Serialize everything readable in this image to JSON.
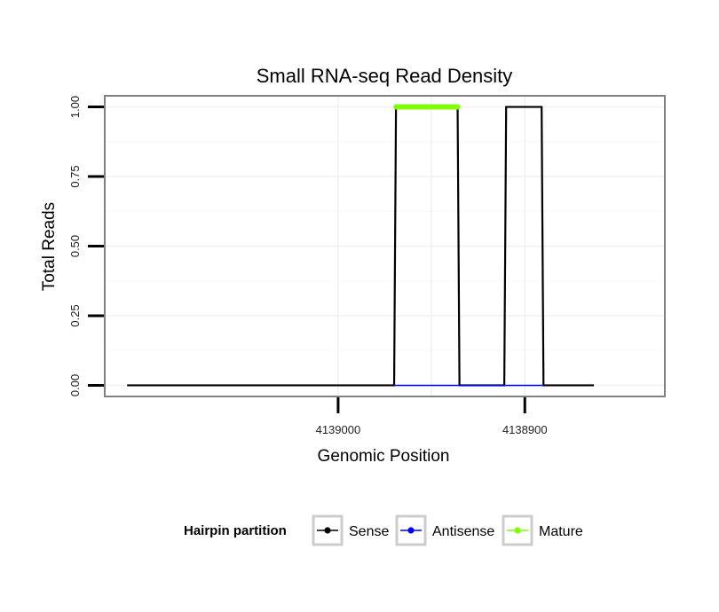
{
  "chart_data": {
    "type": "line",
    "title": "Small RNA-seq Read Density",
    "xlabel": "Genomic Position",
    "ylabel": "Total Reads",
    "x_reversed": true,
    "xlim": [
      4139125,
      4138825
    ],
    "ylim": [
      -0.04,
      1.04
    ],
    "x_ticks": [
      4139000,
      4138900
    ],
    "x_tick_labels": [
      "4139000",
      "4138900"
    ],
    "y_ticks": [
      0,
      0.25,
      0.5,
      0.75,
      1
    ],
    "y_tick_labels": [
      "0.00",
      "0.25",
      "0.50",
      "0.75",
      "1.00"
    ],
    "grid": true,
    "legend": {
      "title": "Hairpin partition",
      "position": "bottom",
      "entries": [
        "Sense",
        "Antisense",
        "Mature"
      ]
    },
    "series": [
      {
        "name": "Sense",
        "color": "#000000",
        "x": [
          4139113,
          4138970,
          4138969,
          4138936,
          4138935,
          4138911,
          4138910,
          4138891,
          4138890,
          4138863
        ],
        "y": [
          0,
          0,
          1,
          1,
          0,
          0,
          1,
          1,
          0,
          0
        ]
      },
      {
        "name": "Antisense",
        "color": "#0000ff",
        "x": [
          4138970,
          4138935,
          4138910,
          4138890
        ],
        "y": [
          0,
          0,
          0,
          0
        ]
      },
      {
        "name": "Mature",
        "color": "#7fff00",
        "x": [
          4138969,
          4138936
        ],
        "y": [
          1,
          1
        ]
      }
    ]
  }
}
